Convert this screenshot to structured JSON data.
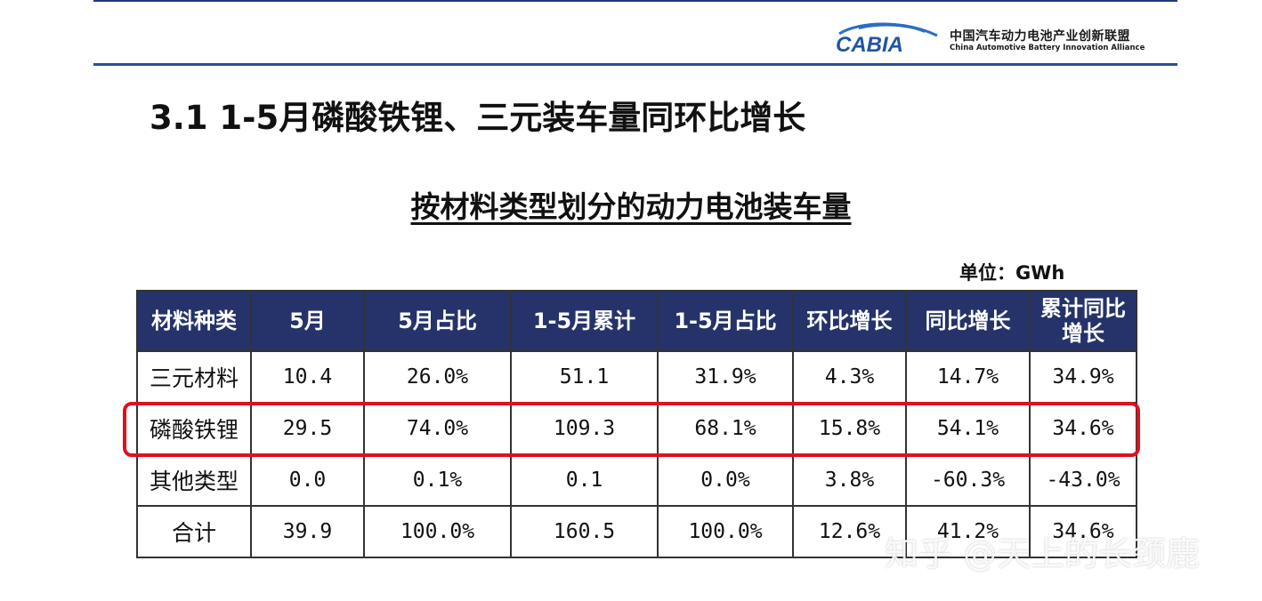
{
  "logo": {
    "text": "CABIA",
    "name_cn": "中国汽车动力电池产业创新联盟",
    "name_en": "China Automotive Battery Innovation Alliance"
  },
  "section_title": "3.1  1-5月磷酸铁锂、三元装车量同环比增长",
  "table_title": "按材料类型划分的动力电池装车量",
  "unit": "单位：GWh",
  "table": {
    "headers": [
      "材料种类",
      "5月",
      "5月占比",
      "1-5月累计",
      "1-5月占比",
      "环比增长",
      "同比增长",
      "累计同比\n增长"
    ],
    "rows": [
      [
        "三元材料",
        "10.4",
        "26.0%",
        "51.1",
        "31.9%",
        "4.3%",
        "14.7%",
        "34.9%"
      ],
      [
        "磷酸铁锂",
        "29.5",
        "74.0%",
        "109.3",
        "68.1%",
        "15.8%",
        "54.1%",
        "34.6%"
      ],
      [
        "其他类型",
        "0.0",
        "0.1%",
        "0.1",
        "0.0%",
        "3.8%",
        "-60.3%",
        "-43.0%"
      ],
      [
        "合计",
        "39.9",
        "100.0%",
        "160.5",
        "100.0%",
        "12.6%",
        "41.2%",
        "34.6%"
      ]
    ],
    "highlighted_row": "磷酸铁锂"
  },
  "watermark": "知乎 @天上的长颈鹿",
  "colors": {
    "header_bg": "#25336a",
    "highlight": "#e0101e",
    "rule": "#2a4f96"
  }
}
